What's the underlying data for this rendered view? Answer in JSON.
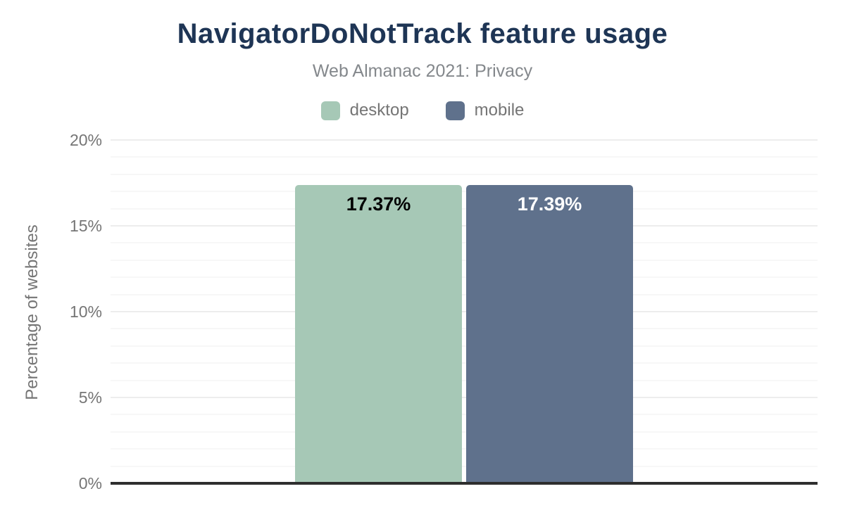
{
  "header": {
    "title": "NavigatorDoNotTrack feature usage",
    "subtitle": "Web Almanac 2021: Privacy"
  },
  "legend": {
    "items": [
      {
        "label": "desktop",
        "color": "#a6c8b6"
      },
      {
        "label": "mobile",
        "color": "#5f718c"
      }
    ]
  },
  "chart_data": {
    "type": "bar",
    "title": "NavigatorDoNotTrack feature usage",
    "subtitle": "Web Almanac 2021: Privacy",
    "categories": [
      "desktop",
      "mobile"
    ],
    "series": [
      {
        "name": "desktop",
        "value": 17.37,
        "data_label": "17.37%",
        "bar_color": "#a6c8b6",
        "label_color": "#000000"
      },
      {
        "name": "mobile",
        "value": 17.39,
        "data_label": "17.39%",
        "bar_color": "#5f718c",
        "label_color": "#ffffff"
      }
    ],
    "xlabel": "",
    "ylabel": "Percentage of websites",
    "ylim": [
      0,
      20
    ],
    "yticks": [
      {
        "value": 0,
        "label": "0%"
      },
      {
        "value": 5,
        "label": "5%"
      },
      {
        "value": 10,
        "label": "10%"
      },
      {
        "value": 15,
        "label": "15%"
      },
      {
        "value": 20,
        "label": "20%"
      }
    ],
    "grid": {
      "orientation": "horizontal",
      "minor_interval": 1,
      "major_interval": 5,
      "minor_color": "#f7f7f7",
      "major_color": "#ededed"
    },
    "legend_position": "top",
    "baseline_color": "#2e2e2e"
  },
  "colors": {
    "title": "#1e3555",
    "subtitle": "#84888c",
    "axis_text": "#757575",
    "background": "#ffffff"
  }
}
